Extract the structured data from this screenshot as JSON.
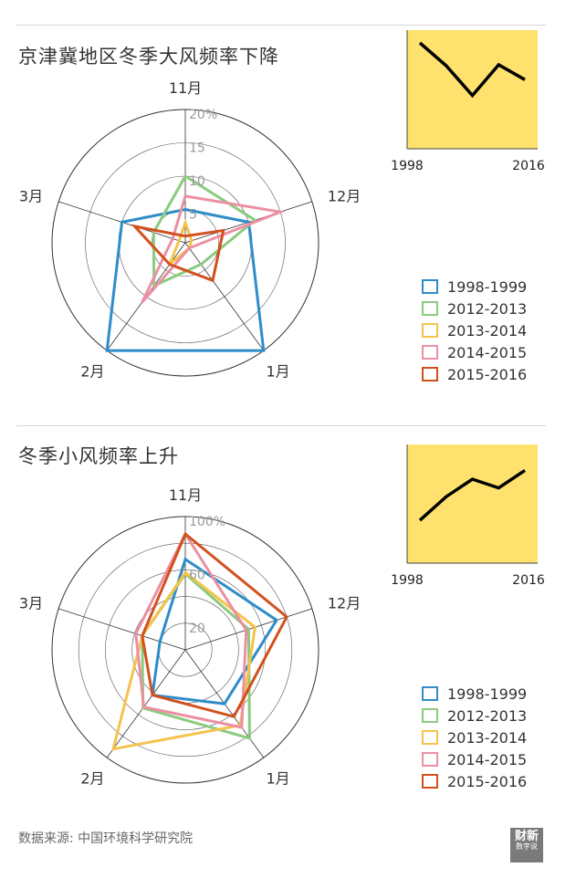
{
  "source": "数据来源: 中国环境科学研究院",
  "logo": {
    "top": "财新",
    "bottom": "数字说"
  },
  "colors": {
    "rings": "#555555",
    "inset_bg": "#FFE26E",
    "inset_line": "#000000"
  },
  "chart_data": [
    {
      "type": "radar",
      "title": "京津冀地区冬季大风频率下降",
      "axes": [
        "11月",
        "12月",
        "1月",
        "2月",
        "3月"
      ],
      "ticks": [
        "5",
        "10",
        "15",
        "20%"
      ],
      "max": 20,
      "series": [
        {
          "name": "1998-1999",
          "color": "#2E8DC8",
          "values": [
            5,
            10,
            20,
            20,
            10
          ]
        },
        {
          "name": "2012-2013",
          "color": "#8ACB7E",
          "values": [
            10,
            11,
            4,
            8,
            5
          ]
        },
        {
          "name": "2013-2014",
          "color": "#F5C34B",
          "values": [
            3,
            1,
            1,
            4,
            1
          ]
        },
        {
          "name": "2014-2015",
          "color": "#EC8FA3",
          "values": [
            7,
            15,
            1,
            11,
            2
          ]
        },
        {
          "name": "2015-2016",
          "color": "#D2501E",
          "values": [
            1,
            6,
            7,
            4,
            8
          ]
        }
      ],
      "inset": {
        "type": "line",
        "x_start": "1998",
        "x_end": "2016",
        "values": [
          100,
          74,
          40,
          75,
          58
        ]
      }
    },
    {
      "type": "radar",
      "title": "冬季小风频率上升",
      "axes": [
        "11月",
        "12月",
        "1月",
        "2月",
        "3月"
      ],
      "ticks": [
        "20",
        "60",
        "100%"
      ],
      "max": 100,
      "series": [
        {
          "name": "1998-1999",
          "color": "#2E8DC8",
          "values": [
            68,
            72,
            50,
            42,
            20
          ]
        },
        {
          "name": "2012-2013",
          "color": "#8ACB7E",
          "values": [
            57,
            50,
            82,
            54,
            34
          ]
        },
        {
          "name": "2013-2014",
          "color": "#F5C34B",
          "values": [
            58,
            55,
            70,
            92,
            34
          ]
        },
        {
          "name": "2014-2015",
          "color": "#EC8FA3",
          "values": [
            87,
            48,
            72,
            53,
            39
          ]
        },
        {
          "name": "2015-2016",
          "color": "#D2501E",
          "values": [
            87,
            80,
            62,
            42,
            34
          ]
        }
      ],
      "inset": {
        "type": "line",
        "x_start": "1998",
        "x_end": "2016",
        "values": [
          28,
          55,
          75,
          65,
          85
        ]
      }
    }
  ]
}
